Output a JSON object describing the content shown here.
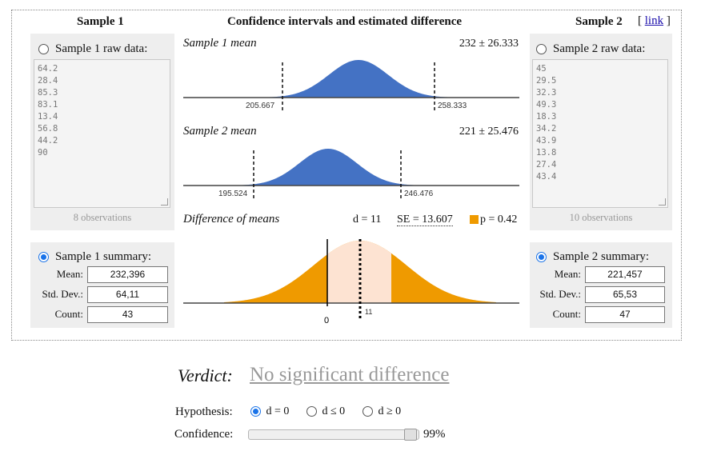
{
  "link_text": "link",
  "colors": {
    "blue": "#4472c4",
    "orange": "#ef9a00",
    "peach": "#fde3d2",
    "accent": "#1a73e8"
  },
  "sample1": {
    "title": "Sample 1",
    "raw_label": "Sample 1 raw data:",
    "raw_values": [
      "64.2",
      "28.4",
      "85.3",
      "83.1",
      "13.4",
      "56.8",
      "44.2",
      "90"
    ],
    "observations": "8 observations",
    "summary_label": "Sample 1 summary:",
    "mean_label": "Mean:",
    "mean_value": "232,396",
    "sd_label": "Std. Dev.:",
    "sd_value": "64,11",
    "count_label": "Count:",
    "count_value": "43"
  },
  "sample2": {
    "title": "Sample 2",
    "raw_label": "Sample 2 raw data:",
    "raw_values": [
      "45",
      "29.5",
      "32.3",
      "49.3",
      "18.3",
      "34.2",
      "43.9",
      "13.8",
      "27.4",
      "43.4"
    ],
    "observations": "10 observations",
    "summary_label": "Sample 2 summary:",
    "mean_label": "Mean:",
    "mean_value": "221,457",
    "sd_label": "Std. Dev.:",
    "sd_value": "65,53",
    "count_label": "Count:",
    "count_value": "47"
  },
  "middle": {
    "title": "Confidence intervals and estimated difference",
    "s1_mean_label": "Sample 1 mean",
    "s1_mean_value": "232 ± 26.333",
    "s1_lo": "205.667",
    "s1_hi": "258.333",
    "s2_mean_label": "Sample 2 mean",
    "s2_mean_value": "221 ± 25.476",
    "s2_lo": "195.524",
    "s2_hi": "246.476",
    "diff_label": "Difference of means",
    "diff_d": "d = 11",
    "diff_se": "SE = 13.607",
    "diff_p": "p = 0.42",
    "zero_tick": "0",
    "d_tick": "11"
  },
  "verdict": {
    "label": "Verdict:",
    "text": "No significant difference"
  },
  "hypothesis": {
    "label": "Hypothesis:",
    "options": [
      "d = 0",
      "d ≤ 0",
      "d ≥ 0"
    ]
  },
  "confidence": {
    "label": "Confidence:",
    "value": "99%",
    "level": 0.99
  }
}
